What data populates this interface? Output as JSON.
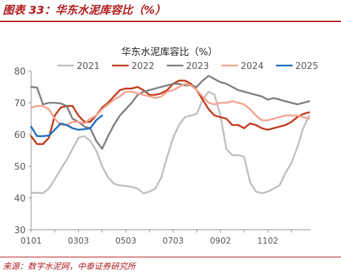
{
  "header": {
    "figure_title": "图表 33：华东水泥库容比（%）"
  },
  "footer": {
    "source": "来源：数字水泥网，中泰证券研究所"
  },
  "chart_data": {
    "type": "line",
    "title": "华东水泥库容比（%）",
    "xlabel": "",
    "ylabel": "",
    "ylim": [
      30,
      80
    ],
    "yticks": [
      30,
      40,
      50,
      60,
      70,
      80
    ],
    "xticks": [
      "0101",
      "0303",
      "0503",
      "0703",
      "0902",
      "1102"
    ],
    "x_points_per_year": 48,
    "grid": false,
    "legend_position": "top",
    "series": [
      {
        "name": "2021",
        "color": "#bfbfbf",
        "values": [
          41.5,
          41.7,
          41.5,
          43,
          46,
          49,
          52,
          55.5,
          59,
          59.5,
          58,
          55,
          50,
          46.5,
          44.5,
          44,
          43.8,
          43.5,
          43,
          41.5,
          42,
          43,
          46.5,
          53,
          59,
          63,
          65.5,
          66,
          66.5,
          71,
          73.5,
          72.5,
          66,
          55.5,
          53.5,
          53.5,
          53,
          45,
          42,
          41.5,
          42,
          43,
          44,
          48,
          51,
          56,
          62,
          66
        ]
      },
      {
        "name": "2022",
        "color": "#c23b1c",
        "values": [
          59.5,
          57,
          57,
          59,
          66,
          68.5,
          69,
          69,
          66,
          64,
          64,
          66,
          68.5,
          70,
          72,
          74,
          74.5,
          74.5,
          75,
          74,
          72.5,
          72.5,
          73,
          74,
          76,
          77,
          77,
          76,
          74,
          71,
          68,
          66,
          65.5,
          65,
          63,
          63,
          62,
          63.5,
          63,
          62,
          61.5,
          62,
          62.5,
          63,
          64,
          65.5,
          66.5,
          67
        ]
      },
      {
        "name": "2023",
        "color": "#7f7f7f",
        "values": [
          75,
          74.8,
          69.5,
          70,
          70,
          69.8,
          69,
          65,
          64,
          62.5,
          62,
          58,
          55.5,
          59.5,
          63,
          66,
          68,
          70,
          72.5,
          73.5,
          74,
          74.5,
          75,
          75.5,
          76,
          76,
          75.5,
          75.5,
          75,
          77,
          78.5,
          77.5,
          76.5,
          76,
          75,
          74,
          73.5,
          73,
          72.5,
          72,
          71,
          71.5,
          71,
          70.5,
          70,
          69.5,
          70,
          70.5
        ]
      },
      {
        "name": "2024",
        "color": "#f4a28f",
        "values": [
          68.5,
          69,
          69,
          68,
          65,
          63,
          63,
          64,
          64,
          63.5,
          65,
          66,
          68,
          69.5,
          71,
          72,
          73.5,
          73.5,
          73,
          72.5,
          72,
          71.5,
          72,
          73.5,
          74,
          75,
          76,
          75.5,
          74,
          72,
          70,
          69.5,
          70,
          70,
          70.5,
          70,
          69.5,
          68,
          66,
          64.5,
          64.5,
          65,
          65.5,
          66,
          66,
          66,
          65.5,
          65
        ]
      },
      {
        "name": "2025",
        "color": "#1f6fbf",
        "values": [
          62.5,
          59.5,
          59.5,
          59.7,
          61.5,
          63.5,
          63,
          62,
          61.5,
          61.7,
          62,
          64.5,
          66
        ]
      }
    ]
  }
}
